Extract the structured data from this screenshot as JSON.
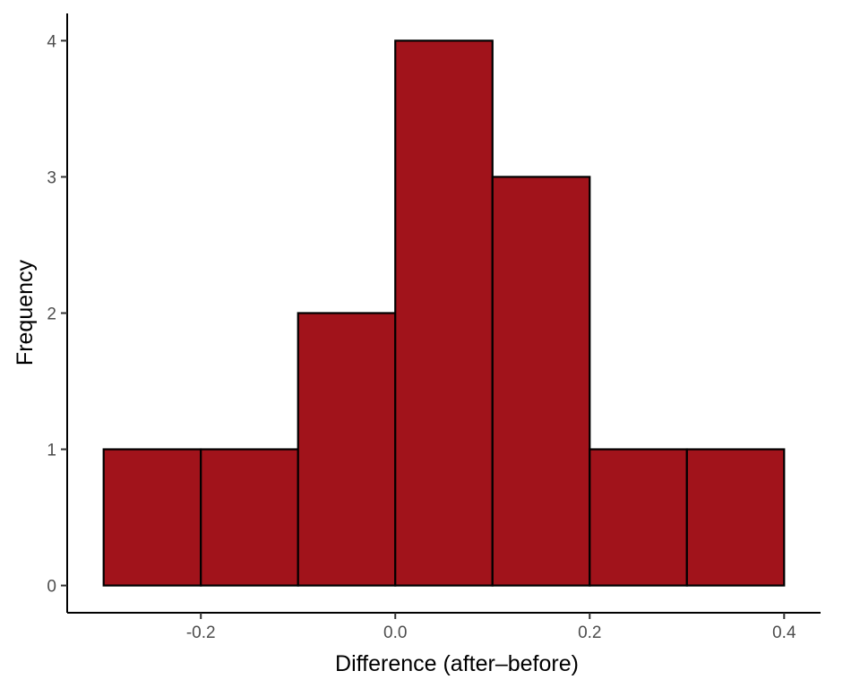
{
  "chart_data": {
    "type": "bar",
    "subtype": "histogram",
    "bins": [
      {
        "start": -0.3,
        "end": -0.2,
        "count": 1
      },
      {
        "start": -0.2,
        "end": -0.1,
        "count": 1
      },
      {
        "start": -0.1,
        "end": 0.0,
        "count": 2
      },
      {
        "start": 0.0,
        "end": 0.1,
        "count": 4
      },
      {
        "start": 0.1,
        "end": 0.2,
        "count": 3
      },
      {
        "start": 0.2,
        "end": 0.3,
        "count": 1
      },
      {
        "start": 0.3,
        "end": 0.4,
        "count": 1
      }
    ],
    "title": "",
    "xlabel": "Difference (after–before)",
    "ylabel": "Frequency",
    "xlim": [
      -0.3375,
      0.4375
    ],
    "ylim": [
      -0.2,
      4.2
    ],
    "xticks": [
      -0.2,
      0.0,
      0.2,
      0.4
    ],
    "xtick_labels": [
      "-0.2",
      "0.0",
      "0.2",
      "0.4"
    ],
    "yticks": [
      0,
      1,
      2,
      3,
      4
    ],
    "ytick_labels": [
      "0",
      "1",
      "2",
      "3",
      "4"
    ],
    "grid": false,
    "legend": "none",
    "colors": {
      "fill": "#a1131b",
      "outline": "#000000"
    }
  }
}
